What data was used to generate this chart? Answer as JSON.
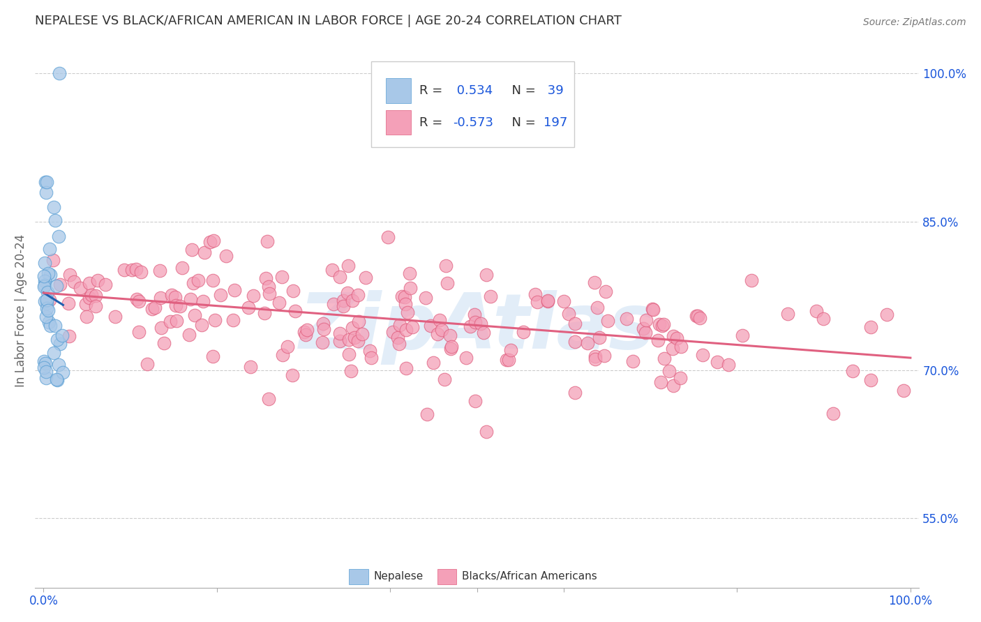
{
  "title": "NEPALESE VS BLACK/AFRICAN AMERICAN IN LABOR FORCE | AGE 20-24 CORRELATION CHART",
  "source": "Source: ZipAtlas.com",
  "ylabel": "In Labor Force | Age 20-24",
  "watermark": "ZipAtlas",
  "nepalese_R": 0.534,
  "nepalese_N": 39,
  "black_R": -0.573,
  "black_N": 197,
  "xlim": [
    -0.01,
    1.01
  ],
  "ylim": [
    0.48,
    1.04
  ],
  "yticks": [
    0.55,
    0.7,
    0.85,
    1.0
  ],
  "ytick_labels": [
    "55.0%",
    "70.0%",
    "85.0%",
    "100.0%"
  ],
  "blue_color": "#a8c8e8",
  "blue_edge_color": "#5a9fd4",
  "blue_line_color": "#2060b0",
  "pink_color": "#f4a0b8",
  "pink_edge_color": "#e06080",
  "pink_line_color": "#e06080",
  "legend_R_color": "#1a56db",
  "legend_label_color": "#333333",
  "background_color": "#ffffff",
  "grid_color": "#cccccc",
  "title_color": "#333333",
  "axis_label_color": "#666666",
  "tick_color": "#1a56db",
  "watermark_color": "#b8d4ee",
  "watermark_alpha": 0.4
}
